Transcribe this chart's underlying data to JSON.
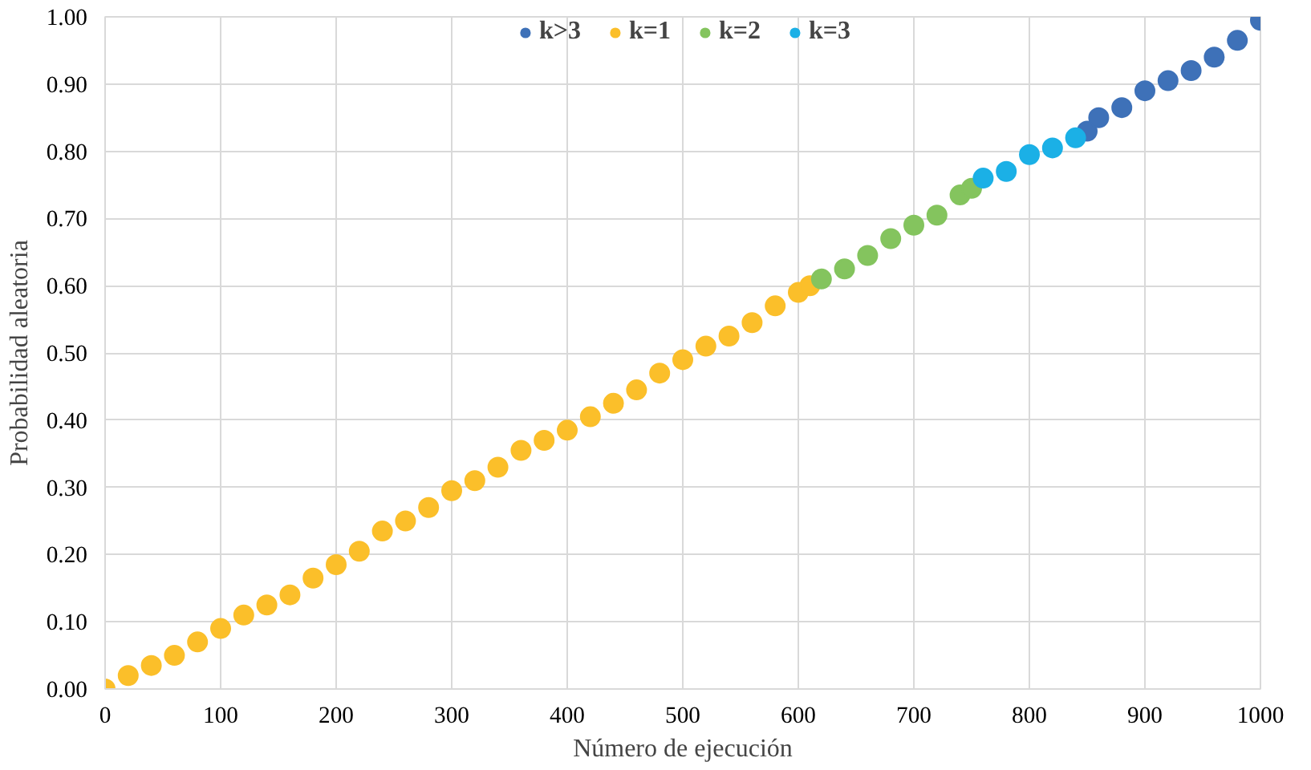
{
  "chart_data": {
    "type": "scatter",
    "xlabel": "Número de ejecución",
    "ylabel": "Probabilidad aleatoria",
    "xlim": [
      0,
      1000
    ],
    "xticks": [
      0,
      100,
      200,
      300,
      400,
      500,
      600,
      700,
      800,
      900,
      1000
    ],
    "ylim": [
      0,
      1
    ],
    "yticks": [
      {
        "value": 0,
        "label": "0.00"
      },
      {
        "value": 0.1,
        "label": "0.10"
      },
      {
        "value": 0.2,
        "label": "0.20"
      },
      {
        "value": 0.3,
        "label": "0.30"
      },
      {
        "value": 0.4,
        "label": "0.40"
      },
      {
        "value": 0.5,
        "label": "0.50"
      },
      {
        "value": 0.6,
        "label": "0.60"
      },
      {
        "value": 0.7,
        "label": "0.70"
      },
      {
        "value": 0.8,
        "label": "0.80"
      },
      {
        "value": 0.9,
        "label": "0.90"
      },
      {
        "value": 1,
        "label": "1.00"
      }
    ],
    "grid": true,
    "legend": "top",
    "marker": "circle",
    "series": [
      {
        "name": "k>3",
        "color": "#3e71b8",
        "x": [
          850,
          860,
          880,
          900,
          920,
          940,
          960,
          980,
          1000
        ],
        "values": [
          0.83,
          0.85,
          0.865,
          0.89,
          0.905,
          0.92,
          0.94,
          0.965,
          0.995
        ]
      },
      {
        "name": "k=1",
        "color": "#fbbf2a",
        "x": [
          0,
          20,
          40,
          60,
          80,
          100,
          120,
          140,
          160,
          180,
          200,
          220,
          240,
          260,
          280,
          300,
          320,
          340,
          360,
          380,
          400,
          420,
          440,
          460,
          480,
          500,
          520,
          540,
          560,
          580,
          600,
          610
        ],
        "values": [
          0.0,
          0.02,
          0.035,
          0.05,
          0.07,
          0.09,
          0.11,
          0.125,
          0.14,
          0.165,
          0.185,
          0.205,
          0.235,
          0.25,
          0.27,
          0.295,
          0.31,
          0.33,
          0.355,
          0.37,
          0.385,
          0.405,
          0.425,
          0.445,
          0.47,
          0.49,
          0.51,
          0.525,
          0.545,
          0.57,
          0.59,
          0.6
        ]
      },
      {
        "name": "k=2",
        "color": "#84c45e",
        "x": [
          620,
          640,
          660,
          680,
          700,
          720,
          740,
          750
        ],
        "values": [
          0.61,
          0.625,
          0.645,
          0.67,
          0.69,
          0.705,
          0.735,
          0.745
        ]
      },
      {
        "name": "k=3",
        "color": "#1bb0e6",
        "x": [
          760,
          780,
          800,
          820,
          840
        ],
        "values": [
          0.76,
          0.77,
          0.795,
          0.805,
          0.82
        ]
      }
    ]
  }
}
